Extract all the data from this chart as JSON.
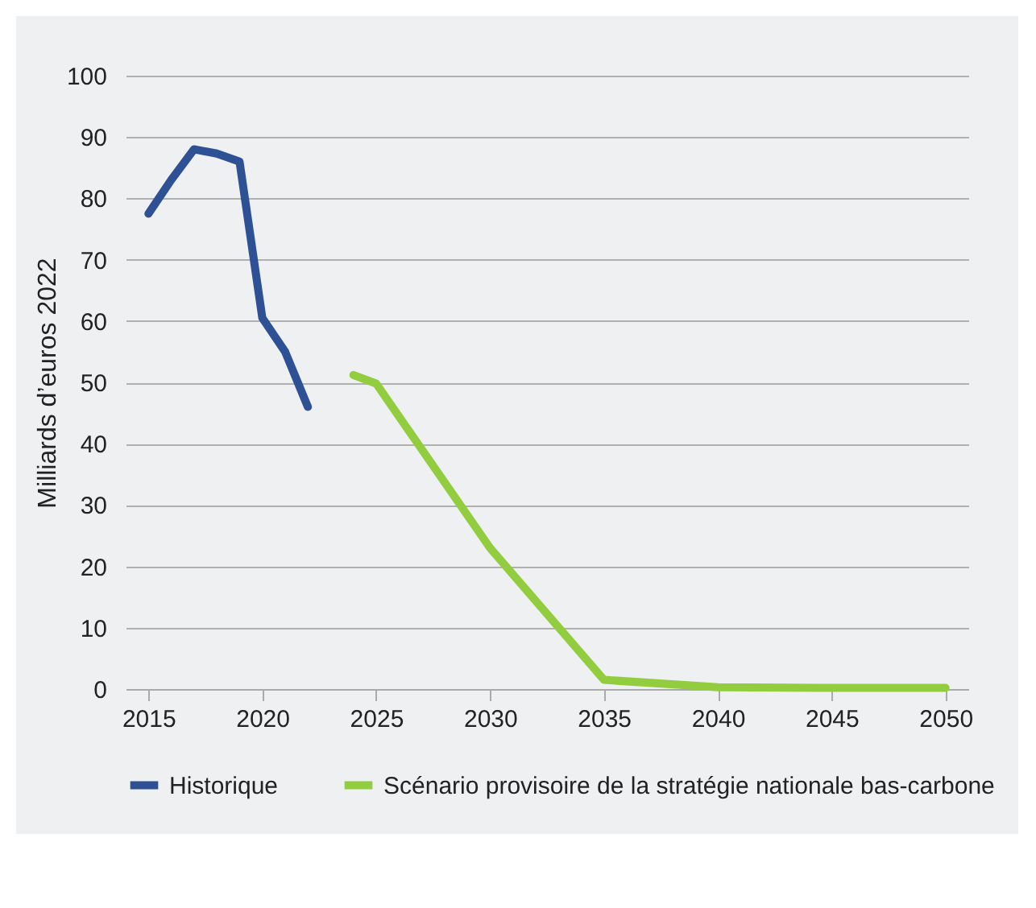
{
  "chart_data": {
    "type": "line",
    "ylabel": "Milliards d’euros 2022",
    "series": [
      {
        "name": "Historique",
        "color": "#2e5196",
        "x": [
          2015,
          2016,
          2017,
          2018,
          2019,
          2020,
          2021,
          2022
        ],
        "values": [
          77.5,
          83,
          88,
          87.3,
          86,
          60.5,
          55,
          46
        ]
      },
      {
        "name": "Scénario provisoire de la stratégie nationale bas-carbone",
        "color": "#92cd3f",
        "x": [
          2024,
          2025,
          2030,
          2035,
          2040,
          2045,
          2050
        ],
        "values": [
          51.2,
          49.8,
          23,
          1.5,
          0.3,
          0.2,
          0.2
        ]
      }
    ],
    "xlim": [
      2014,
      2051
    ],
    "xticks": [
      2015,
      2020,
      2025,
      2030,
      2035,
      2040,
      2045,
      2050
    ],
    "ylim": [
      0,
      100
    ],
    "yticks": [
      0,
      10,
      20,
      30,
      40,
      50,
      60,
      70,
      80,
      90,
      100
    ],
    "grid": "y",
    "legend": "bottom",
    "marker": "none",
    "line_style": "solid"
  }
}
